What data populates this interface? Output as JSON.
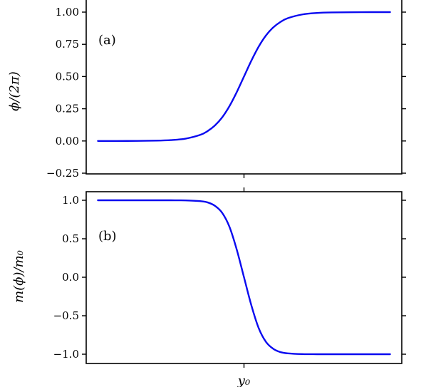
{
  "chart_data": [
    {
      "type": "line",
      "panel_label": "(a)",
      "ylabel": "ϕ/(2π)",
      "xlabel": "",
      "ylim": [
        -0.25,
        1.05
      ],
      "y_ticks": [
        1.0,
        0.75,
        0.5,
        0.25,
        0.0,
        -0.25
      ],
      "y_tick_labels": [
        "1.00",
        "0.75",
        "0.50",
        "0.25",
        "0.00",
        "−0.25"
      ],
      "x_ticks": [
        0
      ],
      "x_tick_labels": [
        ""
      ],
      "xlim": [
        -5.4,
        5.4
      ],
      "series": [
        {
          "color": "#0a0af0",
          "x": [
            -5.0,
            -4.0,
            -3.0,
            -2.5,
            -2.0,
            -1.5,
            -1.25,
            -1.0,
            -0.75,
            -0.5,
            -0.25,
            0.0,
            0.25,
            0.5,
            0.75,
            1.0,
            1.25,
            1.5,
            2.0,
            2.5,
            3.0,
            4.0,
            5.0
          ],
          "y": [
            0.0,
            0.0003,
            0.0025,
            0.0066,
            0.018,
            0.047,
            0.076,
            0.119,
            0.182,
            0.269,
            0.378,
            0.5,
            0.622,
            0.731,
            0.818,
            0.881,
            0.924,
            0.953,
            0.982,
            0.9934,
            0.9975,
            0.9997,
            1.0
          ]
        }
      ]
    },
    {
      "type": "line",
      "panel_label": "(b)",
      "ylabel": "m(ϕ)/m₀",
      "xlabel": "y₀",
      "ylim": [
        -1.1,
        1.1
      ],
      "y_ticks": [
        1.0,
        0.5,
        0.0,
        -0.5,
        -1.0
      ],
      "y_tick_labels": [
        "1.0",
        "0.5",
        "0.0",
        "−0.5",
        "−1.0"
      ],
      "x_ticks": [
        0
      ],
      "x_tick_labels": [
        "y₀"
      ],
      "xlim": [
        -5.4,
        5.4
      ],
      "series": [
        {
          "color": "#0a0af0",
          "x": [
            -5.0,
            -4.0,
            -3.0,
            -2.5,
            -2.0,
            -1.5,
            -1.25,
            -1.0,
            -0.75,
            -0.5,
            -0.25,
            0.0,
            0.25,
            0.5,
            0.75,
            1.0,
            1.25,
            1.5,
            2.0,
            2.5,
            3.0,
            4.0,
            5.0
          ],
          "y": [
            1.0,
            1.0,
            1.0,
            0.9999,
            0.9984,
            0.9889,
            0.9727,
            0.9292,
            0.8384,
            0.6577,
            0.3617,
            0.0,
            -0.3617,
            -0.6577,
            -0.8384,
            -0.9292,
            -0.9727,
            -0.9889,
            -0.9984,
            -0.9999,
            -1.0,
            -1.0,
            -1.0
          ]
        }
      ]
    }
  ]
}
